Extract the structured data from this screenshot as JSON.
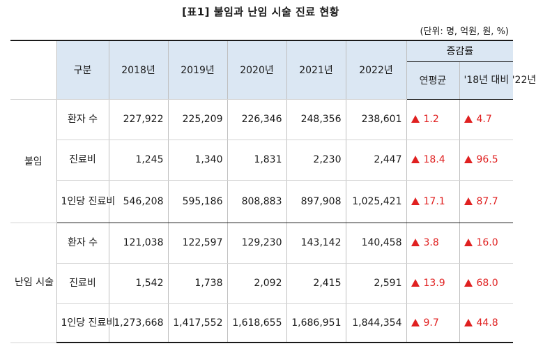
{
  "title": "[표1] 불임과 난임 시술 진료 현황",
  "unit_note": "(단위: 명, 억원, 원, %)",
  "header": {
    "category": "구분",
    "years": [
      "2018년",
      "2019년",
      "2020년",
      "2021년",
      "2022년"
    ],
    "change": "증감률",
    "change_cols": [
      "연평균",
      "'18년 대비 '22년"
    ]
  },
  "groups": [
    {
      "name": "불임",
      "rows": [
        {
          "item": "환자 수",
          "values": [
            "227,922",
            "225,209",
            "226,346",
            "248,356",
            "238,601"
          ],
          "avg": "1.2",
          "vs18": "4.7"
        },
        {
          "item": "진료비",
          "values": [
            "1,245",
            "1,340",
            "1,831",
            "2,230",
            "2,447"
          ],
          "avg": "18.4",
          "vs18": "96.5"
        },
        {
          "item": "1인당 진료비",
          "values": [
            "546,208",
            "595,186",
            "808,883",
            "897,908",
            "1,025,421"
          ],
          "avg": "17.1",
          "vs18": "87.7"
        }
      ]
    },
    {
      "name": "난임 시술",
      "rows": [
        {
          "item": "환자 수",
          "values": [
            "121,038",
            "122,597",
            "129,230",
            "143,142",
            "140,458"
          ],
          "avg": "3.8",
          "vs18": "16.0"
        },
        {
          "item": "진료비",
          "values": [
            "1,542",
            "1,738",
            "2,092",
            "2,415",
            "2,591"
          ],
          "avg": "13.9",
          "vs18": "68.0"
        },
        {
          "item": "1인당 진료비",
          "values": [
            "1,273,668",
            "1,417,552",
            "1,618,655",
            "1,686,951",
            "1,844,354"
          ],
          "avg": "9.7",
          "vs18": "44.8"
        }
      ]
    }
  ],
  "colors": {
    "header_bg": "#dbe7f3",
    "increase": "#e02020"
  },
  "icons": {
    "increase": "triangle-up-icon"
  }
}
